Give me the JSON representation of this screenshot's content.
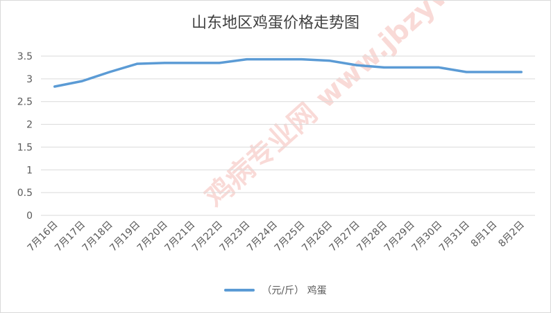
{
  "chart_data": {
    "type": "line",
    "title": "山东地区鸡蛋价格走势图",
    "categories": [
      "7月16日",
      "7月17日",
      "7月18日",
      "7月19日",
      "7月20日",
      "7月21日",
      "7月22日",
      "7月23日",
      "7月24日",
      "7月25日",
      "7月26日",
      "7月27日",
      "7月28日",
      "7月29日",
      "7月30日",
      "7月31日",
      "8月1日",
      "8月2日"
    ],
    "series": [
      {
        "name": "（元/斤） 鸡蛋",
        "values": [
          2.83,
          2.95,
          3.15,
          3.33,
          3.35,
          3.35,
          3.35,
          3.43,
          3.43,
          3.43,
          3.4,
          3.3,
          3.25,
          3.25,
          3.25,
          3.15,
          3.15,
          3.15
        ],
        "color": "#5b9bd5"
      }
    ],
    "ylim": [
      0,
      3.5
    ],
    "yticks": [
      "0",
      "0.5",
      "1",
      "1.5",
      "2",
      "2.5",
      "3",
      "3.5"
    ],
    "grid": true,
    "legend_position": "bottom"
  },
  "watermark": {
    "text": "鸡病专业网 www.jbzyw.com"
  }
}
